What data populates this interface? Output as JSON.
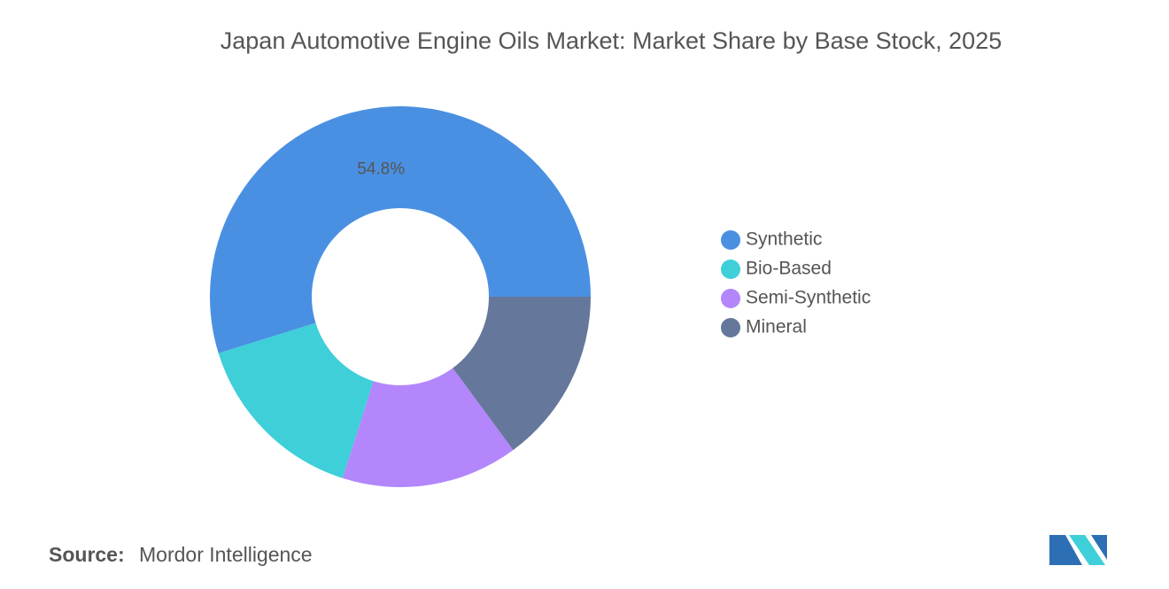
{
  "chart_data": {
    "type": "donut",
    "title": "Japan Automotive Engine Oils Market: Market Share by Base Stock, 2025",
    "categories": [
      "Synthetic",
      "Bio-Based",
      "Semi-Synthetic",
      "Mineral"
    ],
    "values": [
      54.8,
      15.3,
      15.0,
      14.9
    ],
    "value_labels": [
      "54.8%",
      null,
      null,
      null
    ],
    "colors": [
      "#4a90e2",
      "#3ecfd9",
      "#b386fb",
      "#65789b"
    ],
    "legend": "right"
  },
  "source": {
    "label": "Source:",
    "text": "Mordor Intelligence"
  }
}
